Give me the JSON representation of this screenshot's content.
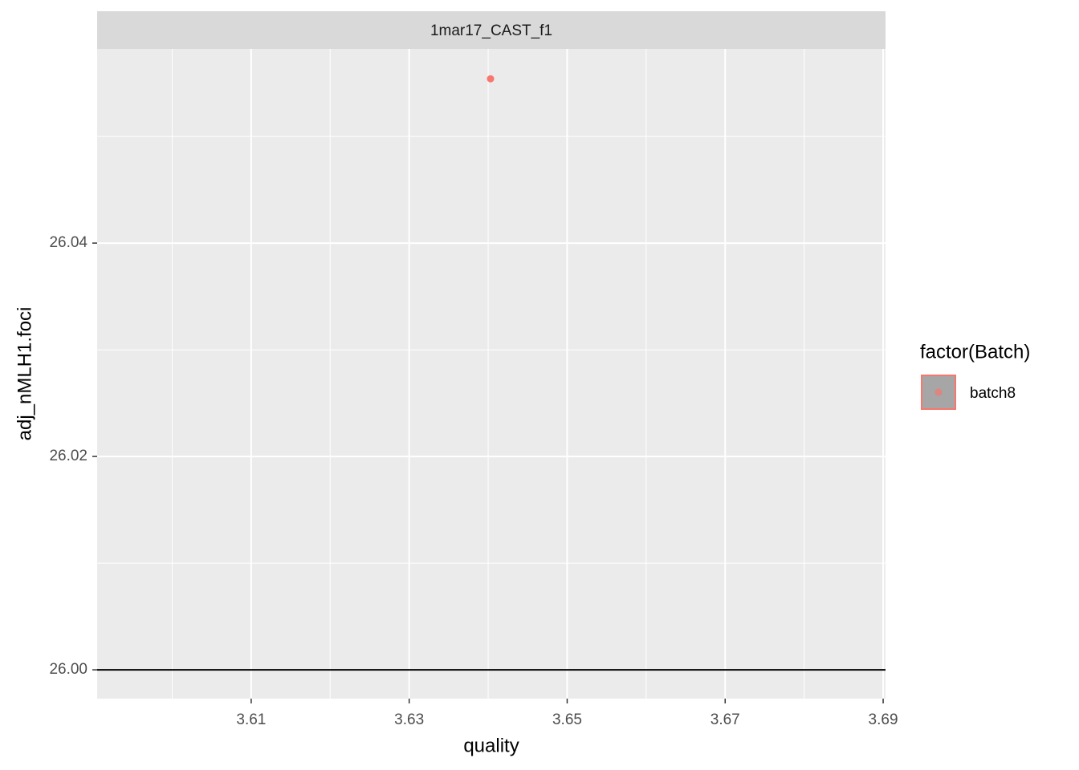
{
  "chart_data": {
    "type": "scatter",
    "facet_label": "1mar17_CAST_f1",
    "x_label": "quality",
    "y_label": "adj_nMLH1.foci",
    "legend_title": "factor(Batch)",
    "series": [
      {
        "name": "batch8",
        "color": "#F8766D",
        "x": [
          3.6403
        ],
        "values": [
          26.0554
        ]
      }
    ],
    "xlim": [
      3.5905,
      3.6903
    ],
    "ylim": [
      25.9973,
      26.0582
    ],
    "xticks": [
      {
        "value": 3.61,
        "label": "3.61"
      },
      {
        "value": 3.63,
        "label": "3.63"
      },
      {
        "value": 3.65,
        "label": "3.65"
      },
      {
        "value": 3.67,
        "label": "3.67"
      },
      {
        "value": 3.69,
        "label": "3.69"
      }
    ],
    "yticks": [
      {
        "value": 26.0,
        "label": "26.00"
      },
      {
        "value": 26.02,
        "label": "26.02"
      },
      {
        "value": 26.04,
        "label": "26.04"
      }
    ],
    "x_minor_ticks": [
      3.6,
      3.62,
      3.64,
      3.66,
      3.68
    ],
    "y_minor_ticks": [
      26.01,
      26.03,
      26.05
    ],
    "hline": 26,
    "grid": true
  }
}
